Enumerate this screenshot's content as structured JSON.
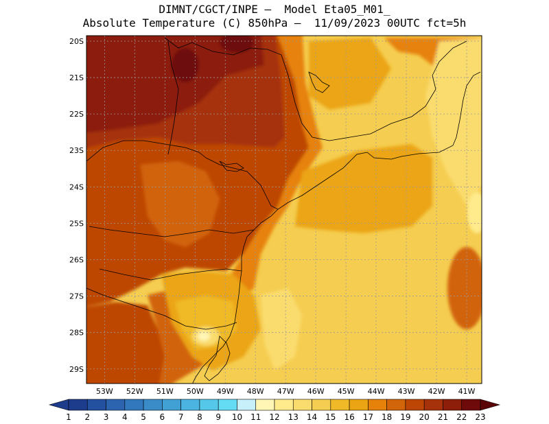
{
  "title": {
    "line1": "DIMNT/CGCT/INPE –  Model Eta05_M01_",
    "line2": "Absolute Temperature (C) 850hPa –  11/09/2023 00UTC fct=5h"
  },
  "map": {
    "lat_labels": [
      "20S",
      "21S",
      "22S",
      "23S",
      "24S",
      "25S",
      "26S",
      "27S",
      "28S",
      "29S"
    ],
    "lon_labels": [
      "53W",
      "52W",
      "51W",
      "50W",
      "49W",
      "48W",
      "47W",
      "46W",
      "45W",
      "44W",
      "43W",
      "42W",
      "41W"
    ],
    "lat_range": [
      -29.4,
      -19.85
    ],
    "lon_range": [
      -53.6,
      -40.5
    ],
    "grid": true
  },
  "colorbar": {
    "labels": [
      "1",
      "2",
      "3",
      "4",
      "5",
      "6",
      "7",
      "8",
      "9",
      "10",
      "11",
      "12",
      "13",
      "14",
      "15",
      "16",
      "17",
      "18",
      "19",
      "20",
      "21",
      "22",
      "23"
    ],
    "colors": [
      "#1e3c8c",
      "#23509f",
      "#2d64b0",
      "#3278bc",
      "#3a8cc8",
      "#41a0d4",
      "#4bb4e0",
      "#55c8ea",
      "#64dcf4",
      "#c8f0fa",
      "#fff5b4",
      "#ffeb8c",
      "#fadc6e",
      "#f5cd50",
      "#f0b928",
      "#eba514",
      "#e6820a",
      "#d2640a",
      "#be4605",
      "#a5320a",
      "#8c1e0a",
      "#6e0a0a"
    ]
  },
  "field_colors": {
    "t22": "#6e0a0a",
    "t21": "#8c1e0a",
    "t20": "#a5320a",
    "t19": "#be4605",
    "t18": "#d2640a",
    "t17": "#e6820a",
    "t16": "#eba514",
    "t15": "#f0b928",
    "t14": "#f5cd50",
    "t13": "#fadc6e",
    "t12": "#ffeb8c",
    "t11": "#fff5b4"
  }
}
